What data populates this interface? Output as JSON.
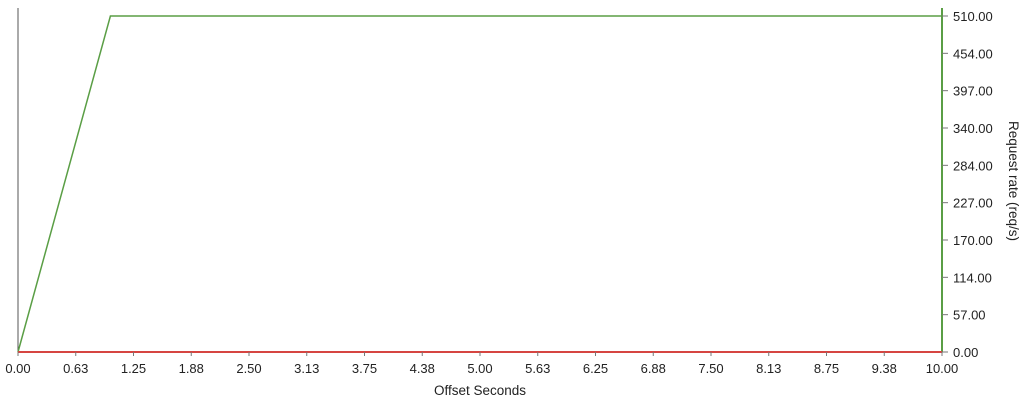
{
  "chart_data": {
    "type": "line",
    "xlabel": "Offset Seconds",
    "ylabel": "Request rate (req/s)",
    "xlim": [
      0,
      10
    ],
    "ylim": [
      0,
      510
    ],
    "x_ticks": [
      "0.00",
      "0.63",
      "1.25",
      "1.88",
      "2.50",
      "3.13",
      "3.75",
      "4.38",
      "5.00",
      "5.63",
      "6.25",
      "6.88",
      "7.50",
      "8.13",
      "8.75",
      "9.38",
      "10.00"
    ],
    "y_ticks": [
      "0.00",
      "57.00",
      "114.00",
      "170.00",
      "227.00",
      "284.00",
      "340.00",
      "397.00",
      "454.00",
      "510.00"
    ],
    "y_axis_position": "right",
    "grid": false,
    "legend": "none",
    "series": [
      {
        "color": "#5a9e45",
        "points": [
          [
            0,
            0
          ],
          [
            1.0,
            510
          ],
          [
            10,
            510
          ]
        ]
      },
      {
        "color": "#d64541",
        "points": [
          [
            0,
            0
          ],
          [
            10,
            0
          ]
        ]
      }
    ],
    "colors": {
      "left_axis": "#555555",
      "right_axis": "#5a9e45",
      "bottom_axis": "#d64541"
    }
  }
}
